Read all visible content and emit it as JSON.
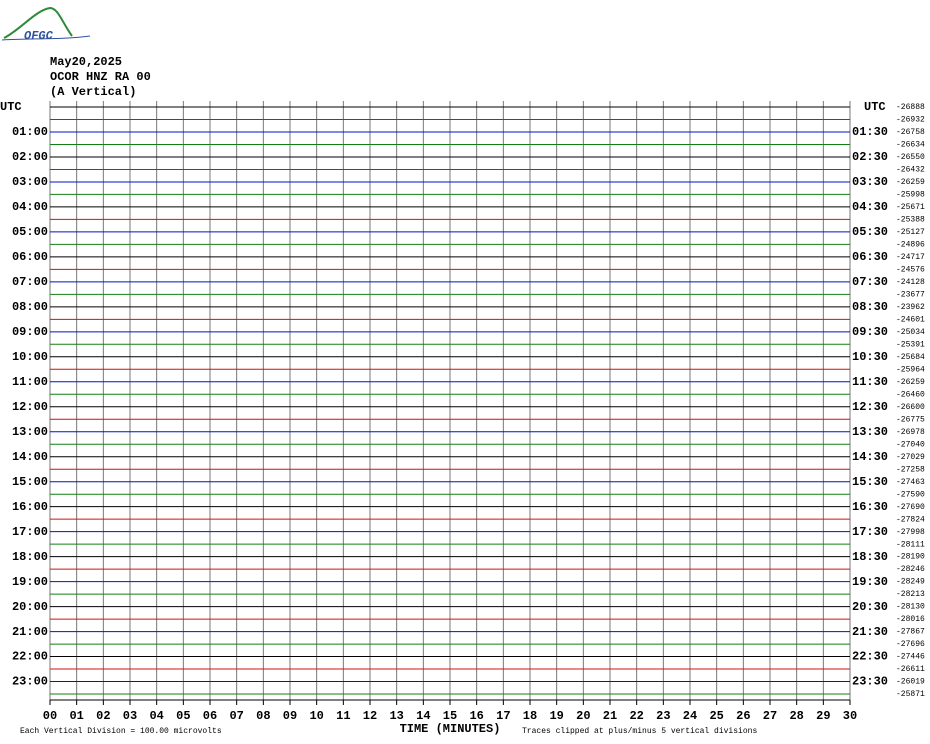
{
  "logo": "OFGC",
  "header": {
    "date": "May20,2025",
    "station": "OCOR HNZ RA 00",
    "component": "(A Vertical)"
  },
  "left_labels": [
    "UTC",
    "01:00",
    "02:00",
    "03:00",
    "04:00",
    "05:00",
    "06:00",
    "07:00",
    "08:00",
    "09:00",
    "10:00",
    "11:00",
    "12:00",
    "13:00",
    "14:00",
    "15:00",
    "16:00",
    "17:00",
    "18:00",
    "19:00",
    "20:00",
    "21:00",
    "22:00",
    "23:00"
  ],
  "right_labels": [
    "UTC",
    "01:30",
    "02:30",
    "03:30",
    "04:30",
    "05:30",
    "06:30",
    "07:30",
    "08:30",
    "09:30",
    "10:30",
    "11:30",
    "12:30",
    "13:30",
    "14:30",
    "15:30",
    "16:30",
    "17:30",
    "18:30",
    "19:30",
    "20:30",
    "21:30",
    "22:30",
    "23:30"
  ],
  "trace_offsets": [
    "-26888",
    "-26932",
    "-26758",
    "-26634",
    "-26550",
    "-26432",
    "-26259",
    "-25998",
    "-25671",
    "-25388",
    "-25127",
    "-24896",
    "-24717",
    "-24576",
    "-24128",
    "-23677",
    "-23962",
    "-24601",
    "-25034",
    "-25391",
    "-25684",
    "-25964",
    "-26259",
    "-26460",
    "-26600",
    "-26775",
    "-26978",
    "-27040",
    "-27029",
    "-27258",
    "-27463",
    "-27590",
    "-27690",
    "-27824",
    "-27998",
    "-28111",
    "-28190",
    "-28246",
    "-28249",
    "-28213",
    "-28130",
    "-28016",
    "-27867",
    "-27696",
    "-27446",
    "-26611",
    "-26019",
    "-25871"
  ],
  "x_ticks": [
    "00",
    "01",
    "02",
    "03",
    "04",
    "05",
    "06",
    "07",
    "08",
    "09",
    "10",
    "11",
    "12",
    "13",
    "14",
    "15",
    "16",
    "17",
    "18",
    "19",
    "20",
    "21",
    "22",
    "23",
    "24",
    "25",
    "26",
    "27",
    "28",
    "29",
    "30"
  ],
  "x_title": "TIME (MINUTES)",
  "footer": {
    "scale": "Each Vertical Division =  100.00 microvolts",
    "clip": "Traces clipped at plus/minus 5 vertical divisions"
  }
}
